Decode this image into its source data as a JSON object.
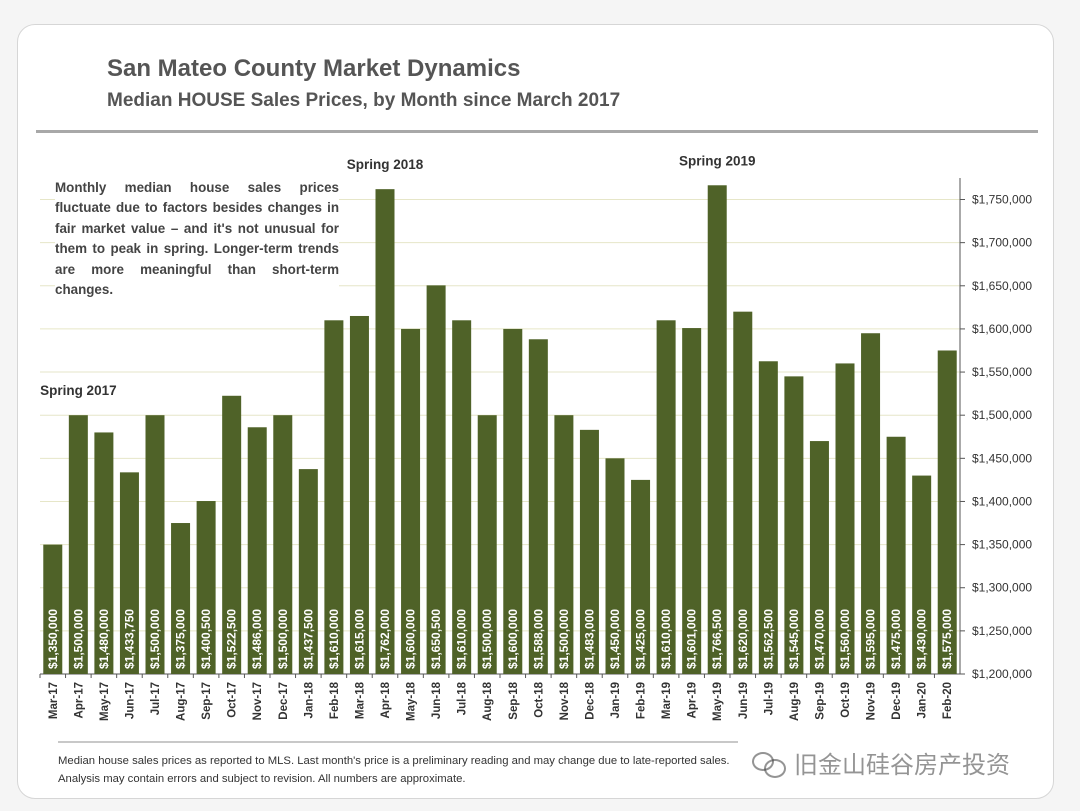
{
  "header": {
    "title": "San Mateo County Market Dynamics",
    "subtitle": "Median HOUSE Sales Prices, by Month since March 2017"
  },
  "annotation": "Monthly median house sales prices fluctuate due to factors besides changes in fair market value – and it's not unusual for them to peak in spring. Longer-term trends are more meaningful than short-term changes.",
  "footnote": "Median house sales prices as reported to MLS. Last month's price is a preliminary reading and may change due to late-reported sales. Analysis may contain errors and subject to revision. All numbers are approximate.",
  "watermark": "旧金山硅谷房产投资",
  "colors": {
    "bar": "#4f6228",
    "grid": "#e6e6c8",
    "axis": "#555555"
  },
  "chart_data": {
    "type": "bar",
    "title": "San Mateo County Market Dynamics",
    "subtitle": "Median HOUSE Sales Prices, by Month since March 2017",
    "categories": [
      "Mar-17",
      "Apr-17",
      "May-17",
      "Jun-17",
      "Jul-17",
      "Aug-17",
      "Sep-17",
      "Oct-17",
      "Nov-17",
      "Dec-17",
      "Jan-18",
      "Feb-18",
      "Mar-18",
      "Apr-18",
      "May-18",
      "Jun-18",
      "Jul-18",
      "Aug-18",
      "Sep-18",
      "Oct-18",
      "Nov-18",
      "Dec-18",
      "Jan-19",
      "Feb-19",
      "Mar-19",
      "Apr-19",
      "May-19",
      "Jun-19",
      "Jul-19",
      "Aug-19",
      "Sep-19",
      "Oct-19",
      "Nov-19",
      "Dec-19",
      "Jan-20",
      "Feb-20"
    ],
    "values": [
      1350000,
      1500000,
      1480000,
      1433750,
      1500000,
      1375000,
      1400500,
      1522500,
      1486000,
      1500000,
      1437500,
      1610000,
      1615000,
      1762000,
      1600000,
      1650500,
      1610000,
      1500000,
      1600000,
      1588000,
      1500000,
      1483000,
      1450000,
      1425000,
      1610000,
      1601000,
      1766500,
      1620000,
      1562500,
      1545000,
      1470000,
      1560000,
      1595000,
      1475000,
      1430000,
      1575000
    ],
    "value_labels": [
      "$1,350,000",
      "$1,500,000",
      "$1,480,000",
      "$1,433,750",
      "$1,500,000",
      "$1,375,000",
      "$1,400,500",
      "$1,522,500",
      "$1,486,000",
      "$1,500,000",
      "$1,437,500",
      "$1,610,000",
      "$1,615,000",
      "$1,762,000",
      "$1,600,000",
      "$1,650,500",
      "$1,610,000",
      "$1,500,000",
      "$1,600,000",
      "$1,588,000",
      "$1,500,000",
      "$1,483,000",
      "$1,450,000",
      "$1,425,000",
      "$1,610,000",
      "$1,601,000",
      "$1,766,500",
      "$1,620,000",
      "$1,562,500",
      "$1,545,000",
      "$1,470,000",
      "$1,560,000",
      "$1,595,000",
      "$1,475,000",
      "$1,430,000",
      "$1,575,000"
    ],
    "ylim": [
      1200000,
      1775000
    ],
    "yticks": [
      1200000,
      1250000,
      1300000,
      1350000,
      1400000,
      1450000,
      1500000,
      1550000,
      1600000,
      1650000,
      1700000,
      1750000
    ],
    "ytick_labels": [
      "$1,200,000",
      "$1,250,000",
      "$1,300,000",
      "$1,350,000",
      "$1,400,000",
      "$1,450,000",
      "$1,500,000",
      "$1,550,000",
      "$1,600,000",
      "$1,650,000",
      "$1,700,000",
      "$1,750,000"
    ],
    "y_axis_side": "right",
    "grid": true,
    "annotations": [
      {
        "text": "Spring 2017",
        "category": "Apr-17"
      },
      {
        "text": "Spring 2018",
        "category": "Apr-18"
      },
      {
        "text": "Spring 2019",
        "category": "May-19"
      }
    ]
  }
}
